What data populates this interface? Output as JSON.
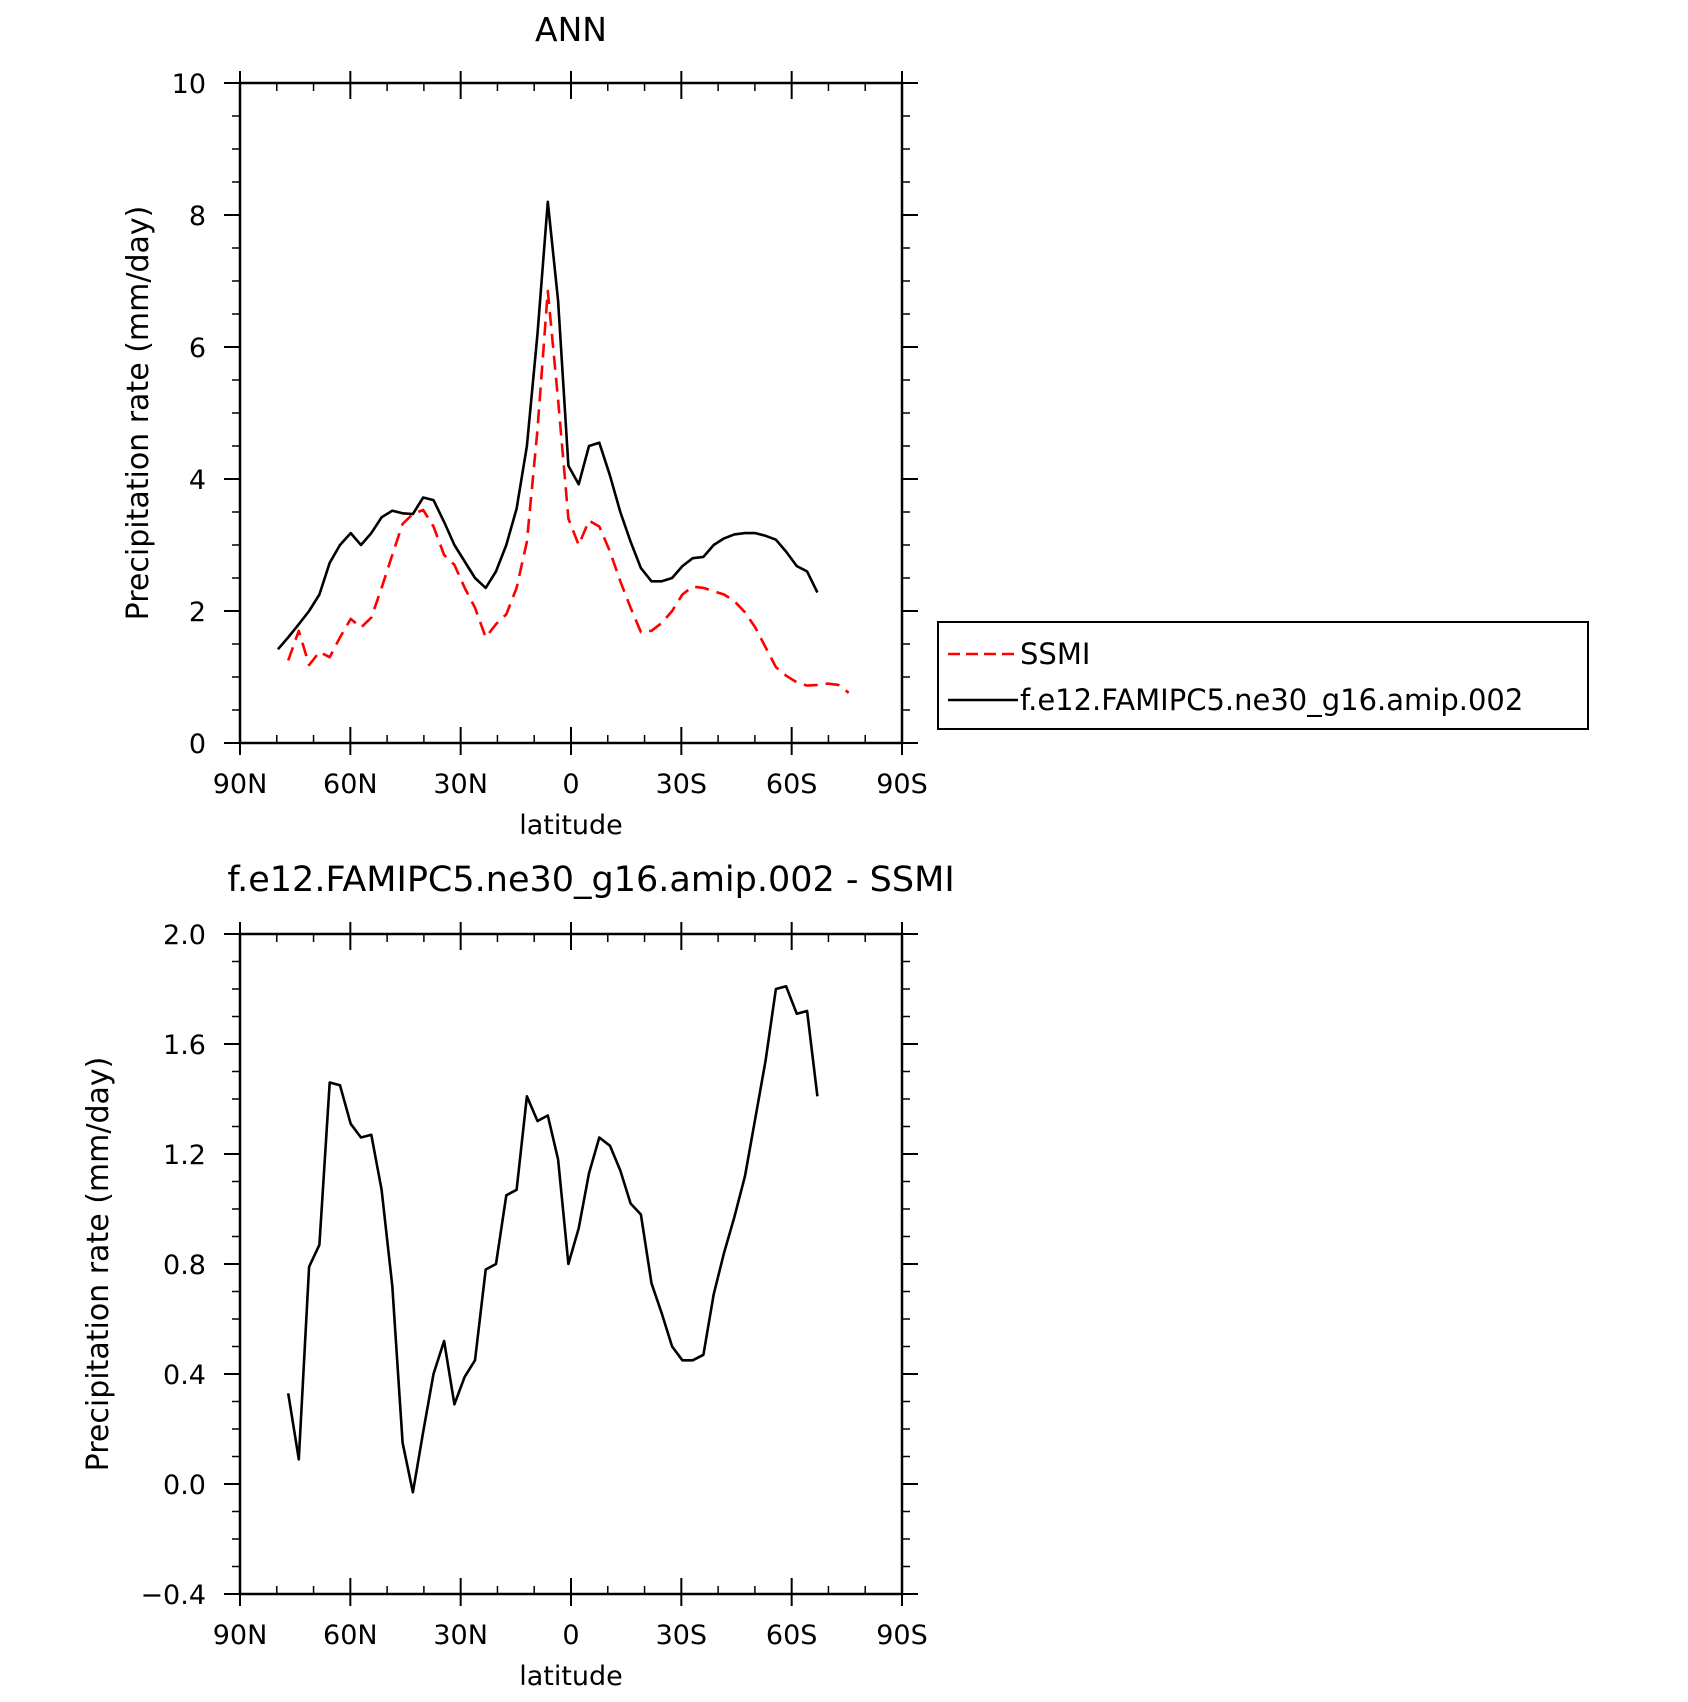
{
  "chart_data": [
    {
      "type": "line",
      "title": "ANN",
      "xlabel": "latitude",
      "ylabel": "Precipitation rate (mm/day)",
      "xlim": [
        90,
        -90
      ],
      "ylim": [
        0,
        10
      ],
      "x_ticks": [
        90,
        60,
        30,
        0,
        -30,
        -60,
        -90
      ],
      "x_tick_labels": [
        "90N",
        "60N",
        "30N",
        "0",
        "30S",
        "60S",
        "90S"
      ],
      "y_ticks": [
        0,
        2,
        4,
        6,
        8,
        10
      ],
      "y_tick_labels": [
        "0",
        "2",
        "4",
        "6",
        "8",
        "10"
      ],
      "legend_position": "right",
      "series": [
        {
          "name": "SSMI",
          "color": "#ff0000",
          "style": "dashed",
          "points": [
            [
              76.9,
              1.25
            ],
            [
              74.0,
              1.7
            ],
            [
              71.2,
              1.18
            ],
            [
              68.4,
              1.38
            ],
            [
              65.6,
              1.3
            ],
            [
              62.8,
              1.6
            ],
            [
              59.9,
              1.88
            ],
            [
              57.1,
              1.75
            ],
            [
              54.3,
              1.9
            ],
            [
              51.5,
              2.35
            ],
            [
              48.6,
              2.85
            ],
            [
              45.8,
              3.32
            ],
            [
              43.0,
              3.47
            ],
            [
              40.2,
              3.53
            ],
            [
              37.4,
              3.28
            ],
            [
              34.5,
              2.85
            ],
            [
              31.7,
              2.7
            ],
            [
              28.9,
              2.35
            ],
            [
              26.1,
              2.05
            ],
            [
              23.2,
              1.6
            ],
            [
              20.4,
              1.8
            ],
            [
              17.6,
              1.95
            ],
            [
              14.8,
              2.35
            ],
            [
              12.0,
              3.05
            ],
            [
              9.1,
              4.75
            ],
            [
              6.3,
              6.85
            ],
            [
              3.5,
              5.2
            ],
            [
              0.7,
              3.4
            ],
            [
              -2.1,
              3.0
            ],
            [
              -4.9,
              3.37
            ],
            [
              -7.7,
              3.28
            ],
            [
              -10.6,
              2.9
            ],
            [
              -13.4,
              2.45
            ],
            [
              -16.2,
              2.05
            ],
            [
              -19.0,
              1.68
            ],
            [
              -21.9,
              1.7
            ],
            [
              -24.7,
              1.82
            ],
            [
              -27.5,
              2.0
            ],
            [
              -30.3,
              2.25
            ],
            [
              -33.1,
              2.37
            ],
            [
              -36.0,
              2.35
            ],
            [
              -38.8,
              2.3
            ],
            [
              -41.6,
              2.25
            ],
            [
              -44.4,
              2.15
            ],
            [
              -47.3,
              1.98
            ],
            [
              -50.1,
              1.75
            ],
            [
              -52.9,
              1.45
            ],
            [
              -55.7,
              1.15
            ],
            [
              -58.5,
              1.02
            ],
            [
              -61.4,
              0.92
            ],
            [
              -64.2,
              0.87
            ],
            [
              -67.0,
              0.88
            ],
            [
              -69.8,
              0.9
            ],
            [
              -72.7,
              0.88
            ],
            [
              -75.5,
              0.76
            ]
          ]
        },
        {
          "name": "f.e12.FAMIPC5.ne30_g16.amip.002",
          "color": "#000000",
          "style": "solid",
          "points": [
            [
              79.7,
              1.42
            ],
            [
              76.9,
              1.6
            ],
            [
              74.0,
              1.8
            ],
            [
              71.2,
              2.0
            ],
            [
              68.4,
              2.25
            ],
            [
              65.6,
              2.73
            ],
            [
              62.8,
              3.0
            ],
            [
              59.9,
              3.18
            ],
            [
              57.1,
              3.0
            ],
            [
              54.3,
              3.18
            ],
            [
              51.5,
              3.42
            ],
            [
              48.6,
              3.52
            ],
            [
              45.8,
              3.48
            ],
            [
              43.0,
              3.47
            ],
            [
              40.2,
              3.72
            ],
            [
              37.4,
              3.68
            ],
            [
              34.5,
              3.35
            ],
            [
              31.7,
              3.0
            ],
            [
              28.9,
              2.75
            ],
            [
              26.1,
              2.5
            ],
            [
              23.2,
              2.35
            ],
            [
              20.4,
              2.6
            ],
            [
              17.6,
              3.0
            ],
            [
              14.8,
              3.55
            ],
            [
              12.0,
              4.5
            ],
            [
              9.1,
              6.2
            ],
            [
              6.3,
              8.2
            ],
            [
              3.5,
              6.7
            ],
            [
              0.7,
              4.2
            ],
            [
              -2.1,
              3.92
            ],
            [
              -4.9,
              4.5
            ],
            [
              -7.7,
              4.55
            ],
            [
              -10.6,
              4.05
            ],
            [
              -13.4,
              3.5
            ],
            [
              -16.2,
              3.05
            ],
            [
              -19.0,
              2.65
            ],
            [
              -21.9,
              2.45
            ],
            [
              -24.7,
              2.45
            ],
            [
              -27.5,
              2.5
            ],
            [
              -30.3,
              2.68
            ],
            [
              -33.1,
              2.8
            ],
            [
              -36.0,
              2.82
            ],
            [
              -38.8,
              3.0
            ],
            [
              -41.6,
              3.1
            ],
            [
              -44.4,
              3.16
            ],
            [
              -47.3,
              3.18
            ],
            [
              -50.1,
              3.18
            ],
            [
              -52.9,
              3.14
            ],
            [
              -55.7,
              3.08
            ],
            [
              -58.5,
              2.9
            ],
            [
              -61.4,
              2.68
            ],
            [
              -64.2,
              2.6
            ],
            [
              -67.0,
              2.28
            ]
          ]
        }
      ]
    },
    {
      "type": "line",
      "title": "f.e12.FAMIPC5.ne30_g16.amip.002 - SSMI",
      "xlabel": "latitude",
      "ylabel": "Precipitation rate (mm/day)",
      "xlim": [
        90,
        -90
      ],
      "ylim": [
        -0.4,
        2.0
      ],
      "x_ticks": [
        90,
        60,
        30,
        0,
        -30,
        -60,
        -90
      ],
      "x_tick_labels": [
        "90N",
        "60N",
        "30N",
        "0",
        "30S",
        "60S",
        "90S"
      ],
      "y_ticks": [
        -0.4,
        0.0,
        0.4,
        0.8,
        1.2,
        1.6,
        2.0
      ],
      "y_tick_labels": [
        "−0.4",
        "0.0",
        "0.4",
        "0.8",
        "1.2",
        "1.6",
        "2.0"
      ],
      "series": [
        {
          "color": "#000000",
          "style": "solid",
          "points": [
            [
              76.9,
              0.33
            ],
            [
              74.0,
              0.09
            ],
            [
              71.2,
              0.79
            ],
            [
              68.4,
              0.87
            ],
            [
              65.6,
              1.46
            ],
            [
              62.8,
              1.45
            ],
            [
              59.9,
              1.31
            ],
            [
              57.1,
              1.26
            ],
            [
              54.3,
              1.27
            ],
            [
              51.5,
              1.07
            ],
            [
              48.6,
              0.72
            ],
            [
              45.8,
              0.15
            ],
            [
              43.0,
              -0.03
            ],
            [
              40.2,
              0.19
            ],
            [
              37.4,
              0.4
            ],
            [
              34.5,
              0.52
            ],
            [
              31.7,
              0.29
            ],
            [
              28.9,
              0.39
            ],
            [
              26.1,
              0.45
            ],
            [
              23.2,
              0.78
            ],
            [
              20.4,
              0.8
            ],
            [
              17.6,
              1.05
            ],
            [
              14.8,
              1.07
            ],
            [
              12.0,
              1.41
            ],
            [
              9.1,
              1.32
            ],
            [
              6.3,
              1.34
            ],
            [
              3.5,
              1.18
            ],
            [
              0.7,
              0.8
            ],
            [
              -2.1,
              0.93
            ],
            [
              -4.9,
              1.13
            ],
            [
              -7.7,
              1.26
            ],
            [
              -10.6,
              1.23
            ],
            [
              -13.4,
              1.14
            ],
            [
              -16.2,
              1.02
            ],
            [
              -19.0,
              0.98
            ],
            [
              -21.9,
              0.73
            ],
            [
              -24.7,
              0.62
            ],
            [
              -27.5,
              0.5
            ],
            [
              -30.3,
              0.45
            ],
            [
              -33.1,
              0.45
            ],
            [
              -36.0,
              0.47
            ],
            [
              -38.8,
              0.69
            ],
            [
              -41.6,
              0.84
            ],
            [
              -44.4,
              0.97
            ],
            [
              -47.3,
              1.12
            ],
            [
              -50.1,
              1.33
            ],
            [
              -52.9,
              1.54
            ],
            [
              -55.7,
              1.8
            ],
            [
              -58.5,
              1.81
            ],
            [
              -61.4,
              1.71
            ],
            [
              -64.2,
              1.72
            ],
            [
              -67.0,
              1.41
            ]
          ]
        }
      ]
    }
  ]
}
